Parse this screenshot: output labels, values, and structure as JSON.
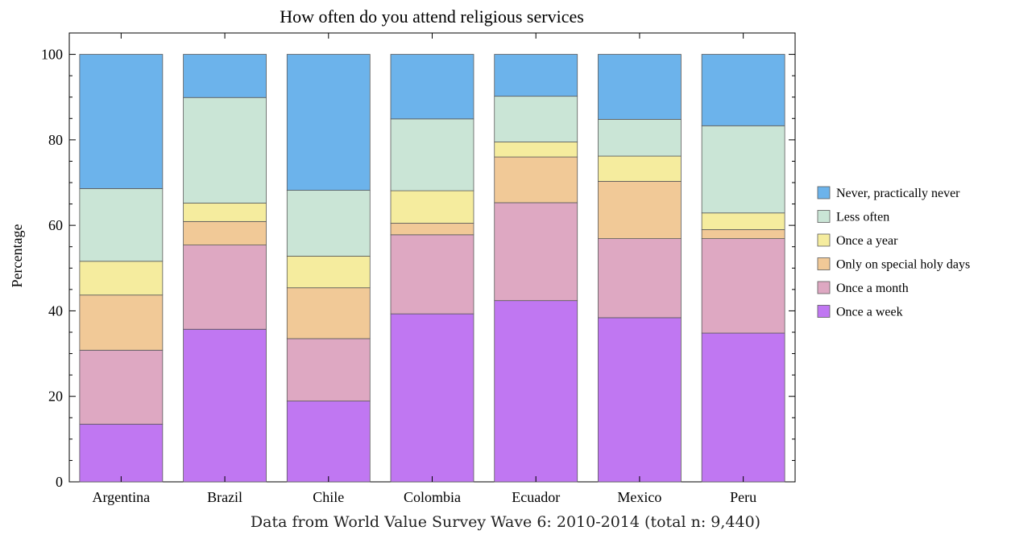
{
  "caption": "Data from World Value Survey Wave 6: 2010-2014 (total n: 9,440)",
  "chart_data": {
    "type": "bar",
    "stacked": true,
    "title": "How often do you attend religious services",
    "xlabel": "",
    "ylabel": "Percentage",
    "ylim": [
      0,
      105
    ],
    "yticks": [
      0,
      20,
      40,
      60,
      80,
      100
    ],
    "legend_position": "right",
    "categories": [
      "Argentina",
      "Brazil",
      "Chile",
      "Colombia",
      "Ecuador",
      "Mexico",
      "Peru"
    ],
    "series": [
      {
        "name": "Once a week",
        "color": "#c077f2",
        "values": [
          13.5,
          35.7,
          18.9,
          39.3,
          42.4,
          38.4,
          34.8
        ]
      },
      {
        "name": "Once a month",
        "color": "#dea8c2",
        "values": [
          17.3,
          19.7,
          14.6,
          18.5,
          22.9,
          18.5,
          22.1
        ]
      },
      {
        "name": "Only on special holy days",
        "color": "#f1c997",
        "values": [
          12.9,
          5.5,
          11.9,
          2.7,
          10.7,
          13.4,
          2.1
        ]
      },
      {
        "name": "Once a year",
        "color": "#f5ec9e",
        "values": [
          7.9,
          4.3,
          7.4,
          7.6,
          3.5,
          5.9,
          3.9
        ]
      },
      {
        "name": "Less often",
        "color": "#cae5d6",
        "values": [
          17.0,
          24.7,
          15.4,
          16.8,
          10.7,
          8.6,
          20.4
        ]
      },
      {
        "name": "Never, practically never",
        "color": "#6cb3eb",
        "values": [
          31.4,
          10.1,
          31.8,
          15.1,
          9.8,
          15.2,
          16.7
        ]
      }
    ]
  }
}
